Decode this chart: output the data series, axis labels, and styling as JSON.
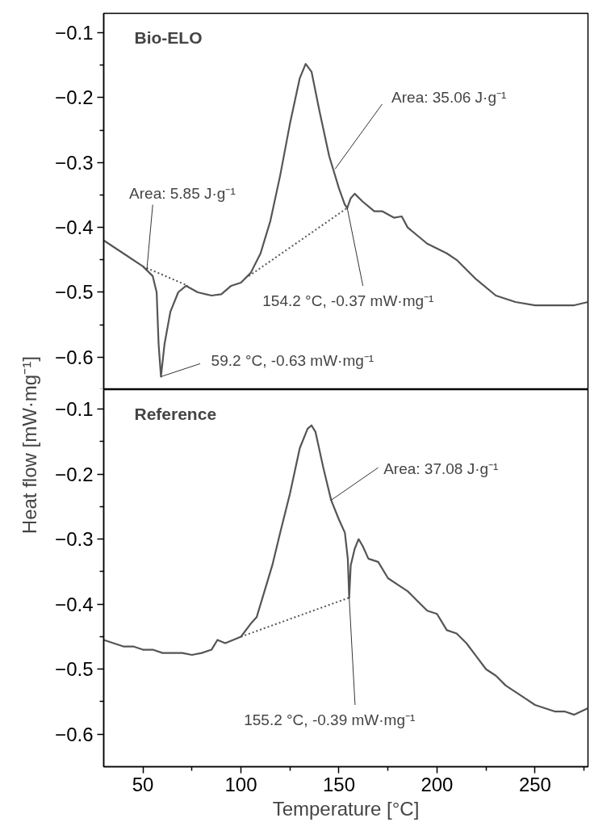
{
  "chart_data": [
    {
      "type": "line",
      "title": "Bio-ELO",
      "ylabel": "Heat flow [mW·mg⁻¹]",
      "xlim": [
        30,
        277
      ],
      "ylim": [
        -0.65,
        -0.07
      ],
      "tick_labels": "y",
      "line_style": "solid",
      "yticks": [
        -0.6,
        -0.5,
        -0.4,
        -0.3,
        -0.2,
        -0.1,
        {
          "value": -0.65,
          "label": null
        },
        {
          "value": -0.55,
          "label": null
        },
        {
          "value": -0.45,
          "label": null
        },
        {
          "value": -0.35,
          "label": null
        },
        {
          "value": -0.25,
          "label": null
        },
        {
          "value": -0.15,
          "label": null
        }
      ],
      "series": [
        {
          "color": "#555555",
          "x": [
            30,
            40,
            50,
            55,
            57,
            58,
            59.2,
            61,
            64,
            68,
            72,
            78,
            85,
            90,
            95,
            100,
            105,
            110,
            115,
            120,
            125,
            130,
            133,
            136,
            140,
            145,
            150,
            153,
            154.2,
            156,
            158,
            162,
            168,
            172,
            178,
            182,
            185,
            195,
            205,
            210,
            220,
            230,
            240,
            250,
            260,
            270,
            277
          ],
          "values": [
            -0.42,
            -0.44,
            -0.46,
            -0.475,
            -0.5,
            -0.58,
            -0.63,
            -0.58,
            -0.53,
            -0.5,
            -0.49,
            -0.5,
            -0.505,
            -0.503,
            -0.49,
            -0.485,
            -0.47,
            -0.44,
            -0.39,
            -0.32,
            -0.24,
            -0.17,
            -0.148,
            -0.16,
            -0.22,
            -0.29,
            -0.34,
            -0.365,
            -0.37,
            -0.355,
            -0.348,
            -0.36,
            -0.375,
            -0.375,
            -0.385,
            -0.383,
            -0.4,
            -0.425,
            -0.44,
            -0.45,
            -0.48,
            -0.505,
            -0.515,
            -0.52,
            -0.52,
            -0.52,
            -0.515
          ]
        },
        {
          "color": "#555555",
          "line_style": "dotted",
          "x": [
            50,
            73
          ],
          "values": [
            -0.46,
            -0.49
          ]
        },
        {
          "color": "#555555",
          "line_style": "dotted",
          "x": [
            104,
            154.2
          ],
          "values": [
            -0.475,
            -0.37
          ]
        }
      ],
      "annotations": [
        {
          "text": "Area: 5.85 J·g⁻¹",
          "x": 52,
          "y": -0.465
        },
        {
          "text": "Area: 35.06 J·g⁻¹",
          "x": 148,
          "y": -0.31
        },
        {
          "text": "154.2 °C, -0.37 mW·mg⁻¹",
          "x": 154.2,
          "y": -0.37
        },
        {
          "text": "59.2 °C, -0.63 mW·mg⁻¹",
          "x": 59.2,
          "y": -0.63
        }
      ]
    },
    {
      "type": "line",
      "title": "Reference",
      "xlabel": "Temperature [°C]",
      "xlim": [
        30,
        277
      ],
      "ylim": [
        -0.65,
        -0.07
      ],
      "line_style": "solid",
      "xticks": [
        50,
        100,
        150,
        200,
        250,
        {
          "value": 75,
          "label": null
        },
        {
          "value": 125,
          "label": null
        },
        {
          "value": 175,
          "label": null
        },
        {
          "value": 225,
          "label": null
        },
        {
          "value": 275,
          "label": null
        }
      ],
      "yticks": [
        -0.6,
        -0.5,
        -0.4,
        -0.3,
        -0.2,
        -0.1,
        {
          "value": -0.55,
          "label": null
        },
        {
          "value": -0.45,
          "label": null
        },
        {
          "value": -0.35,
          "label": null
        },
        {
          "value": -0.25,
          "label": null
        },
        {
          "value": -0.15,
          "label": null
        }
      ],
      "series": [
        {
          "color": "#555555",
          "x": [
            30,
            35,
            40,
            45,
            50,
            55,
            60,
            65,
            70,
            75,
            80,
            85,
            88,
            92,
            96,
            100,
            105,
            108,
            112,
            116,
            120,
            125,
            130,
            134,
            136,
            138,
            142,
            146,
            150,
            153,
            154.5,
            155.2,
            156,
            158,
            160,
            162,
            165,
            170,
            175,
            180,
            185,
            190,
            195,
            200,
            205,
            210,
            215,
            220,
            225,
            230,
            235,
            240,
            245,
            250,
            255,
            260,
            265,
            270,
            277
          ],
          "values": [
            -0.455,
            -0.46,
            -0.465,
            -0.465,
            -0.47,
            -0.47,
            -0.475,
            -0.475,
            -0.475,
            -0.478,
            -0.475,
            -0.47,
            -0.455,
            -0.46,
            -0.455,
            -0.45,
            -0.43,
            -0.42,
            -0.38,
            -0.34,
            -0.29,
            -0.23,
            -0.16,
            -0.13,
            -0.125,
            -0.135,
            -0.19,
            -0.24,
            -0.27,
            -0.29,
            -0.33,
            -0.39,
            -0.34,
            -0.315,
            -0.3,
            -0.31,
            -0.33,
            -0.335,
            -0.36,
            -0.37,
            -0.38,
            -0.395,
            -0.41,
            -0.415,
            -0.44,
            -0.445,
            -0.46,
            -0.48,
            -0.5,
            -0.51,
            -0.525,
            -0.535,
            -0.545,
            -0.555,
            -0.56,
            -0.565,
            -0.565,
            -0.57,
            -0.56
          ]
        },
        {
          "color": "#555555",
          "line_style": "dotted",
          "x": [
            100,
            155.2
          ],
          "values": [
            -0.45,
            -0.39
          ]
        }
      ],
      "annotations": [
        {
          "text": "Area: 37.08 J·g⁻¹",
          "x": 146,
          "y": -0.24
        },
        {
          "text": "155.2 °C, -0.39 mW·mg⁻¹",
          "x": 155.2,
          "y": -0.39
        }
      ]
    }
  ]
}
